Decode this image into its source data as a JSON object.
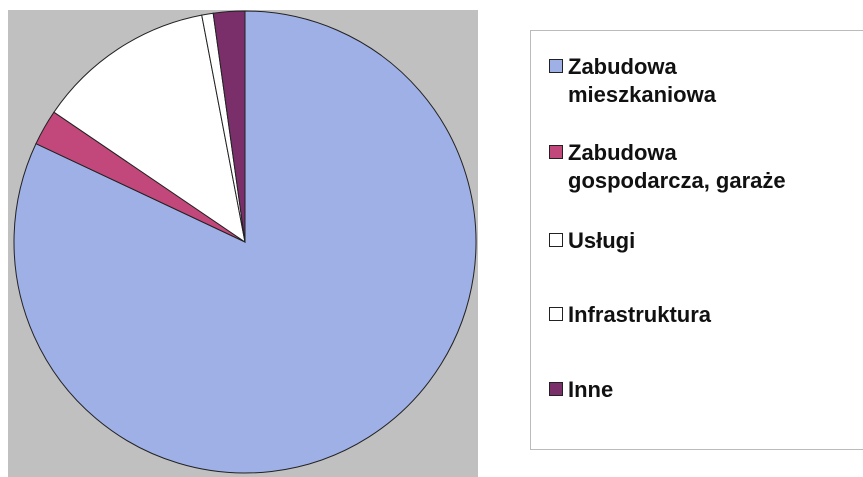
{
  "chart_data": {
    "type": "pie",
    "categories": [
      "Zabudowa mieszkaniowa",
      "Zabudowa gospodarcza, garaże",
      "Usługi",
      "Infrastruktura",
      "Inne"
    ],
    "values": [
      82,
      2.5,
      12.5,
      0.8,
      2.2
    ],
    "colors": [
      "#9fb0e6",
      "#c2487c",
      "#ffffff",
      "#ffffff",
      "#7a2f6b"
    ],
    "legend": "right"
  }
}
